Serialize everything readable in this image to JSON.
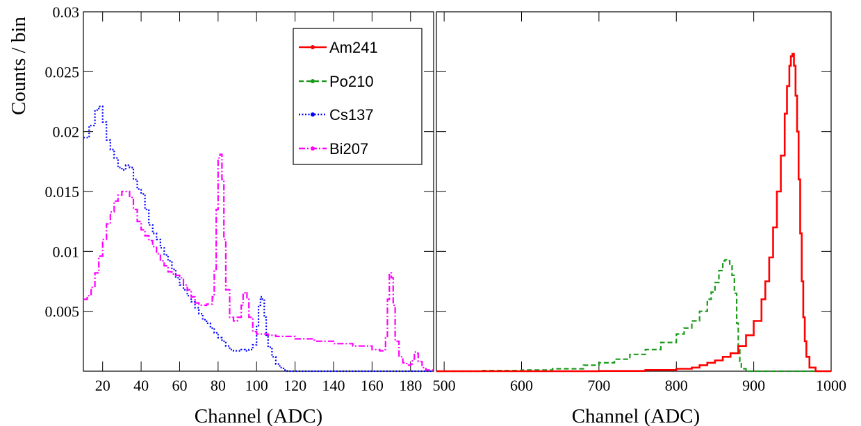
{
  "colors": {
    "Am241": "#ff0000",
    "Po210": "#1a9a1a",
    "Cs137": "#0000ff",
    "Bi207": "#ff00ff"
  },
  "chart_data": [
    {
      "type": "line",
      "ylabel": "Counts / bin",
      "xlabel": "Channel (ADC)",
      "xlim": [
        10,
        192
      ],
      "ylim": [
        0,
        0.03
      ],
      "xticks": [
        20,
        40,
        60,
        80,
        100,
        120,
        140,
        160,
        180
      ],
      "yticks": [
        0.005,
        0.01,
        0.015,
        0.02,
        0.025,
        0.03
      ],
      "ytick_labels": [
        "0.005",
        "0.01",
        "0.015",
        "0.02",
        "0.025",
        "0.03"
      ],
      "legend": {
        "placement": "top-right",
        "entries": [
          "Am241",
          "Po210",
          "Cs137",
          "Bi207"
        ]
      },
      "series": [
        {
          "name": "Cs137",
          "style": "dotted",
          "x": [
            10,
            13,
            16,
            18,
            20,
            22,
            24,
            26,
            28,
            30,
            32,
            34,
            36,
            38,
            40,
            42,
            44,
            46,
            48,
            50,
            52,
            54,
            56,
            58,
            60,
            62,
            64,
            66,
            68,
            70,
            72,
            74,
            76,
            78,
            80,
            82,
            84,
            86,
            88,
            90,
            92,
            94,
            96,
            98,
            100,
            101,
            102,
            103,
            104,
            105,
            106,
            108,
            110,
            112,
            114,
            116,
            118,
            120,
            130,
            150,
            170,
            192
          ],
          "y": [
            0.0195,
            0.0205,
            0.0218,
            0.0221,
            0.0208,
            0.0193,
            0.0185,
            0.0178,
            0.017,
            0.0168,
            0.0172,
            0.017,
            0.016,
            0.0152,
            0.0148,
            0.0135,
            0.0122,
            0.0115,
            0.011,
            0.0103,
            0.0097,
            0.0092,
            0.0085,
            0.0078,
            0.0072,
            0.0068,
            0.0063,
            0.0058,
            0.0053,
            0.0048,
            0.0043,
            0.004,
            0.0036,
            0.0032,
            0.0028,
            0.0025,
            0.0021,
            0.0018,
            0.0017,
            0.0017,
            0.0018,
            0.0017,
            0.0018,
            0.0022,
            0.0038,
            0.0055,
            0.0062,
            0.006,
            0.0045,
            0.003,
            0.002,
            0.0012,
            0.0006,
            0.0003,
            0.0001,
            0.0,
            0.0,
            0.0,
            0.0,
            0.0,
            0.0,
            0.0
          ]
        },
        {
          "name": "Bi207",
          "style": "dash-dot",
          "x": [
            10,
            12,
            14,
            16,
            18,
            20,
            22,
            24,
            26,
            28,
            30,
            32,
            34,
            36,
            38,
            40,
            42,
            44,
            46,
            48,
            50,
            52,
            54,
            56,
            58,
            60,
            62,
            64,
            66,
            68,
            70,
            72,
            74,
            76,
            77,
            78,
            79,
            80,
            81,
            82,
            83,
            84,
            86,
            88,
            90,
            92,
            93,
            94,
            95,
            96,
            98,
            100,
            102,
            104,
            106,
            110,
            120,
            130,
            140,
            150,
            160,
            164,
            166,
            167,
            168,
            169,
            170,
            171,
            172,
            174,
            176,
            178,
            180,
            181,
            182,
            183,
            184,
            186,
            188,
            192
          ],
          "y": [
            0.006,
            0.0063,
            0.007,
            0.0082,
            0.0096,
            0.011,
            0.0123,
            0.0133,
            0.0142,
            0.0147,
            0.015,
            0.015,
            0.0145,
            0.0135,
            0.0125,
            0.0118,
            0.0113,
            0.0109,
            0.0104,
            0.0098,
            0.0092,
            0.0088,
            0.0083,
            0.0081,
            0.008,
            0.0078,
            0.0072,
            0.0068,
            0.0062,
            0.0057,
            0.0055,
            0.0055,
            0.0056,
            0.0056,
            0.0062,
            0.0085,
            0.0135,
            0.0178,
            0.0181,
            0.016,
            0.011,
            0.0068,
            0.0045,
            0.0042,
            0.0045,
            0.0055,
            0.0064,
            0.0066,
            0.006,
            0.0045,
            0.0033,
            0.0031,
            0.0031,
            0.0031,
            0.003,
            0.0029,
            0.0027,
            0.0025,
            0.0023,
            0.0021,
            0.0018,
            0.0017,
            0.0018,
            0.0028,
            0.006,
            0.0082,
            0.0078,
            0.0055,
            0.0025,
            0.0012,
            0.0007,
            0.0005,
            0.0006,
            0.001,
            0.0016,
            0.0015,
            0.0008,
            0.0003,
            0.0001,
            0.0
          ]
        }
      ]
    },
    {
      "type": "line",
      "xlabel": "Channel (ADC)",
      "xlim": [
        490,
        1000
      ],
      "ylim": [
        0,
        0.03
      ],
      "xticks": [
        500,
        600,
        700,
        800,
        900,
        1000
      ],
      "series": [
        {
          "name": "Po210",
          "style": "dashed",
          "x": [
            490,
            550,
            600,
            640,
            680,
            700,
            720,
            740,
            760,
            780,
            800,
            810,
            820,
            830,
            840,
            845,
            850,
            855,
            860,
            863,
            866,
            869,
            872,
            875,
            878,
            880,
            882,
            884,
            890,
            1000
          ],
          "y": [
            0.0,
            5e-05,
            0.0001,
            0.0002,
            0.0005,
            0.0007,
            0.001,
            0.0014,
            0.0018,
            0.0024,
            0.0031,
            0.0036,
            0.0042,
            0.005,
            0.006,
            0.0066,
            0.0074,
            0.0084,
            0.0092,
            0.0093,
            0.0092,
            0.0088,
            0.008,
            0.0065,
            0.004,
            0.002,
            0.0008,
            0.0002,
            0.0,
            0.0
          ]
        },
        {
          "name": "Am241",
          "style": "solid",
          "x": [
            490,
            700,
            760,
            800,
            820,
            830,
            840,
            850,
            860,
            870,
            880,
            890,
            900,
            910,
            915,
            920,
            925,
            930,
            935,
            940,
            943,
            946,
            948,
            950,
            952,
            954,
            956,
            958,
            960,
            962,
            964,
            966,
            968,
            972,
            980,
            1000
          ],
          "y": [
            0.0,
            2e-05,
            0.0001,
            0.0002,
            0.0003,
            0.0005,
            0.0007,
            0.0009,
            0.0012,
            0.0015,
            0.0021,
            0.003,
            0.0042,
            0.006,
            0.0075,
            0.0095,
            0.012,
            0.015,
            0.018,
            0.0215,
            0.0238,
            0.0255,
            0.0263,
            0.0265,
            0.0255,
            0.023,
            0.02,
            0.016,
            0.0115,
            0.0075,
            0.0045,
            0.0025,
            0.0012,
            0.0003,
            0.0,
            0.0
          ]
        }
      ]
    }
  ]
}
